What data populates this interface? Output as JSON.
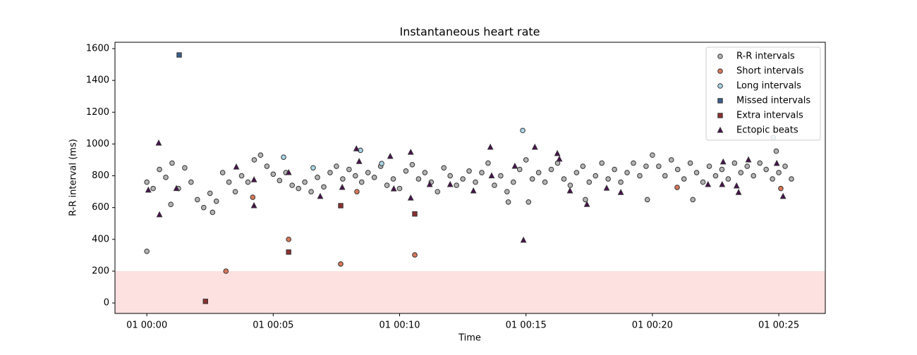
{
  "chart_data": {
    "type": "scatter",
    "title": "Instantaneous heart rate",
    "x_label": "Time",
    "y_label": "R-R interval (ms)",
    "xlim": [
      -1.26,
      26.84
    ],
    "ylim": [
      -66,
      1640
    ],
    "xticks": [
      {
        "value": 0,
        "label": "01 00:00"
      },
      {
        "value": 5,
        "label": "01 00:05"
      },
      {
        "value": 10,
        "label": "01 00:10"
      },
      {
        "value": 15,
        "label": "01 00:15"
      },
      {
        "value": 20,
        "label": "01 00:20"
      },
      {
        "value": 25,
        "label": "01 00:25"
      }
    ],
    "yticks": [
      0,
      200,
      400,
      600,
      800,
      1000,
      1200,
      1400,
      1600
    ],
    "shade_below": 200,
    "shade_color": "#fde0e0",
    "legend": "upper right",
    "series": [
      {
        "name": "R-R intervals",
        "color": "#b4b4b4",
        "marker": "circle",
        "x": [
          0,
          0.25,
          0.5,
          0.75,
          1,
          1.25,
          1.5,
          1.75,
          2,
          2.25,
          2.5,
          2.75,
          3,
          3.25,
          3.5,
          3.75,
          4,
          4.25,
          4.5,
          4.75,
          5,
          5.25,
          5.5,
          5.75,
          6,
          6.25,
          6.5,
          6.75,
          7,
          7.25,
          7.5,
          7.75,
          8,
          8.25,
          8.5,
          8.75,
          9,
          9.25,
          9.5,
          9.75,
          10,
          10.25,
          10.5,
          10.75,
          11,
          11.25,
          11.5,
          11.75,
          12,
          12.25,
          12.5,
          12.75,
          13,
          13.25,
          13.5,
          13.75,
          14,
          14.25,
          14.5,
          14.75,
          15,
          15.25,
          15.5,
          15.75,
          16,
          16.25,
          16.5,
          16.75,
          17,
          17.25,
          17.5,
          17.75,
          18,
          18.25,
          18.5,
          18.75,
          19,
          19.25,
          19.5,
          19.75,
          20,
          20.25,
          20.5,
          20.75,
          21,
          21.25,
          21.5,
          21.75,
          22,
          22.25,
          22.5,
          22.75,
          23,
          23.25,
          23.5,
          23.75,
          24,
          24.25,
          24.5,
          24.75,
          25,
          25.25,
          25.5,
          0,
          0.95,
          17.35,
          15.1,
          19.8,
          21.6,
          24.9,
          2.6,
          14.3
        ],
        "values": [
          760,
          720,
          840,
          790,
          880,
          720,
          850,
          760,
          650,
          600,
          690,
          640,
          820,
          760,
          700,
          800,
          760,
          900,
          930,
          860,
          810,
          770,
          820,
          740,
          720,
          760,
          700,
          790,
          730,
          820,
          860,
          780,
          840,
          800,
          760,
          820,
          790,
          860,
          740,
          780,
          720,
          830,
          870,
          780,
          820,
          760,
          700,
          850,
          800,
          740,
          780,
          830,
          760,
          820,
          880,
          740,
          800,
          700,
          760,
          840,
          900,
          780,
          820,
          760,
          840,
          880,
          780,
          740,
          820,
          860,
          760,
          800,
          880,
          780,
          840,
          760,
          820,
          880,
          800,
          860,
          930,
          860,
          800,
          900,
          840,
          780,
          880,
          820,
          760,
          860,
          800,
          840,
          780,
          880,
          820,
          860,
          800,
          880,
          840,
          780,
          820,
          860,
          780,
          325,
          620,
          650,
          635,
          650,
          650,
          955,
          570,
          635
        ]
      },
      {
        "name": "Short intervals",
        "color": "#d9785a",
        "marker": "circle",
        "x": [
          3.13,
          5.61,
          7.67,
          10.6,
          8.31,
          20.98,
          25.08,
          4.19
        ],
        "values": [
          200,
          400,
          245,
          302,
          700,
          727,
          720,
          665
        ]
      },
      {
        "name": "Long intervals",
        "color": "#a9d5e8",
        "marker": "circle",
        "x": [
          5.41,
          14.87,
          8.45,
          9.29,
          6.58,
          24.78
        ],
        "values": [
          917,
          1085,
          960,
          877,
          850,
          1040
        ]
      },
      {
        "name": "Missed intervals",
        "color": "#3a5f8a",
        "marker": "square",
        "x": [
          1.28
        ],
        "values": [
          1560
        ]
      },
      {
        "name": "Extra intervals",
        "color": "#8e3030",
        "marker": "square",
        "x": [
          2.32,
          5.61,
          7.67,
          10.6
        ],
        "values": [
          10,
          320,
          612,
          560
        ]
      },
      {
        "name": "Ectopic beats",
        "color": "#4a1050",
        "marker": "triangle",
        "x": [
          0.47,
          0.06,
          0.5,
          1.17,
          3.54,
          4.24,
          4.24,
          5.61,
          6.86,
          7.73,
          8.29,
          8.4,
          9.63,
          9.77,
          10.44,
          10.44,
          11.19,
          12.0,
          12.92,
          13.59,
          13.64,
          14.56,
          14.9,
          15.35,
          16.24,
          16.32,
          16.74,
          17.41,
          18.19,
          18.75,
          22.2,
          22.76,
          22.8,
          23.33,
          23.41,
          23.8,
          25.17,
          24.92
        ],
        "values": [
          1006,
          710,
          555,
          720,
          855,
          612,
          775,
          820,
          670,
          727,
          970,
          890,
          922,
          718,
          948,
          660,
          745,
          745,
          705,
          980,
          800,
          860,
          395,
          980,
          940,
          905,
          705,
          620,
          722,
          695,
          745,
          745,
          887,
          736,
          695,
          900,
          670,
          878
        ]
      }
    ]
  }
}
